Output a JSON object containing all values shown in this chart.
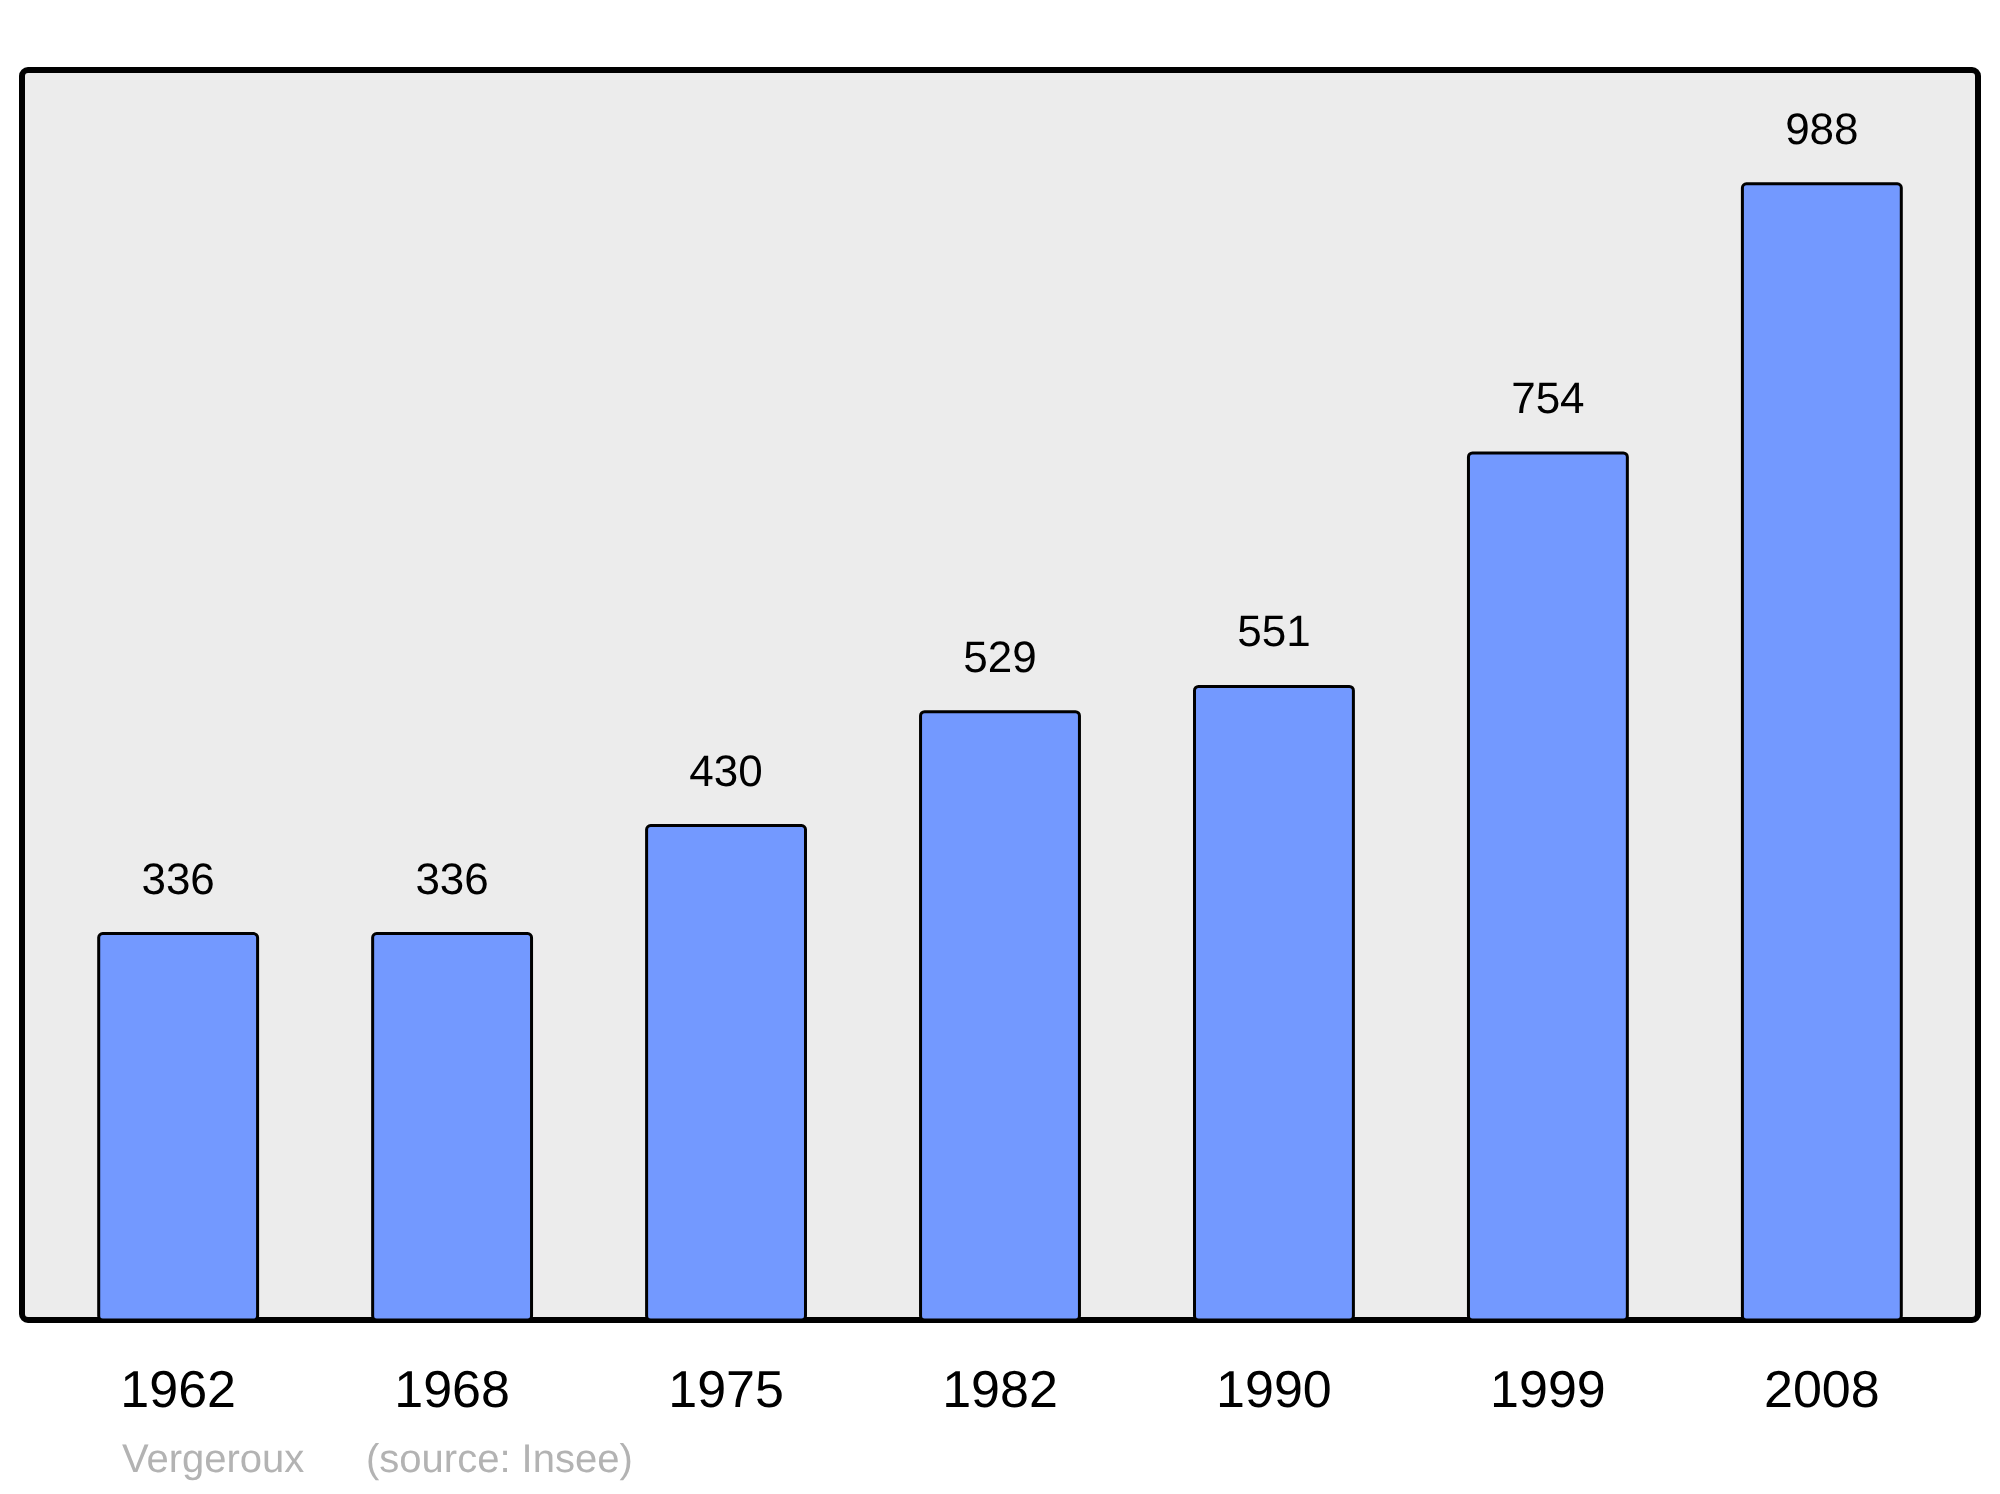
{
  "chart_data": {
    "type": "bar",
    "categories": [
      "1962",
      "1968",
      "1975",
      "1982",
      "1990",
      "1999",
      "2008"
    ],
    "values": [
      336,
      336,
      430,
      529,
      551,
      754,
      988
    ],
    "color": "#7399ff",
    "ylim": [
      0,
      1087
    ],
    "data_labels": true,
    "grid": false,
    "annotations": [
      "Vergeroux",
      "(source: Insee)"
    ]
  }
}
